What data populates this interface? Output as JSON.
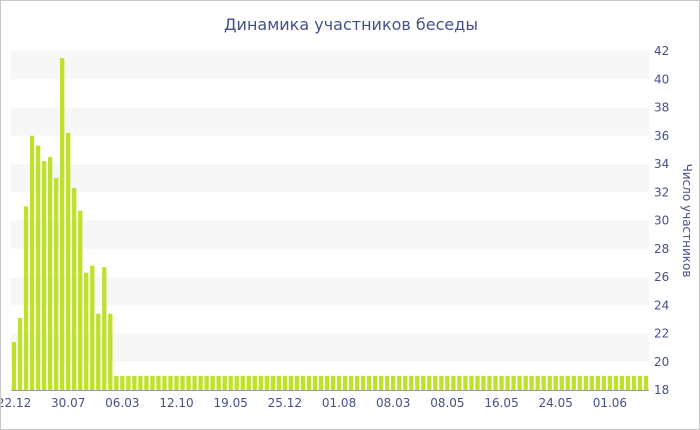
{
  "chart_data": {
    "type": "bar",
    "title": "Динамика участников беседы",
    "xlabel": "",
    "ylabel": "Число участников",
    "ylim": [
      18,
      42
    ],
    "y_ticks": [
      18,
      20,
      22,
      24,
      26,
      28,
      30,
      32,
      34,
      36,
      38,
      40,
      42
    ],
    "y_axis_position": "right",
    "grid": "horizontal alternating bands",
    "legend": "none",
    "bar_color": "#bfe02f",
    "band_color": "#f7f7f7",
    "text_color": "#44508a",
    "x_tick_labels": [
      {
        "index": 0,
        "label": "22.12"
      },
      {
        "index": 9,
        "label": "30.07"
      },
      {
        "index": 18,
        "label": "06.03"
      },
      {
        "index": 27,
        "label": "12.10"
      },
      {
        "index": 36,
        "label": "19.05"
      },
      {
        "index": 45,
        "label": "25.12"
      },
      {
        "index": 54,
        "label": "01.08"
      },
      {
        "index": 63,
        "label": "08.03"
      },
      {
        "index": 72,
        "label": "08.05"
      },
      {
        "index": 81,
        "label": "16.05"
      },
      {
        "index": 90,
        "label": "24.05"
      },
      {
        "index": 99,
        "label": "01.06"
      }
    ],
    "values": [
      21.4,
      23.1,
      31.0,
      36.0,
      35.3,
      34.2,
      34.5,
      33.0,
      41.5,
      36.2,
      32.3,
      30.7,
      26.3,
      26.8,
      23.4,
      26.7,
      23.4,
      19.0,
      19.0,
      19.0,
      19.0,
      19.0,
      19.0,
      19.0,
      19.0,
      19.0,
      19.0,
      19.0,
      19.0,
      19.0,
      19.0,
      19.0,
      19.0,
      19.0,
      19.0,
      19.0,
      19.0,
      19.0,
      19.0,
      19.0,
      19.0,
      19.0,
      19.0,
      19.0,
      19.0,
      19.0,
      19.0,
      19.0,
      19.0,
      19.0,
      19.0,
      19.0,
      19.0,
      19.0,
      19.0,
      19.0,
      19.0,
      19.0,
      19.0,
      19.0,
      19.0,
      19.0,
      19.0,
      19.0,
      19.0,
      19.0,
      19.0,
      19.0,
      19.0,
      19.0,
      19.0,
      19.0,
      19.0,
      19.0,
      19.0,
      19.0,
      19.0,
      19.0,
      19.0,
      19.0,
      19.0,
      19.0,
      19.0,
      19.0,
      19.0,
      19.0,
      19.0,
      19.0,
      19.0,
      19.0,
      19.0,
      19.0,
      19.0,
      19.0,
      19.0,
      19.0,
      19.0,
      19.0,
      19.0,
      19.0,
      19.0,
      19.0,
      19.0,
      19.0,
      19.0,
      19.0
    ]
  }
}
